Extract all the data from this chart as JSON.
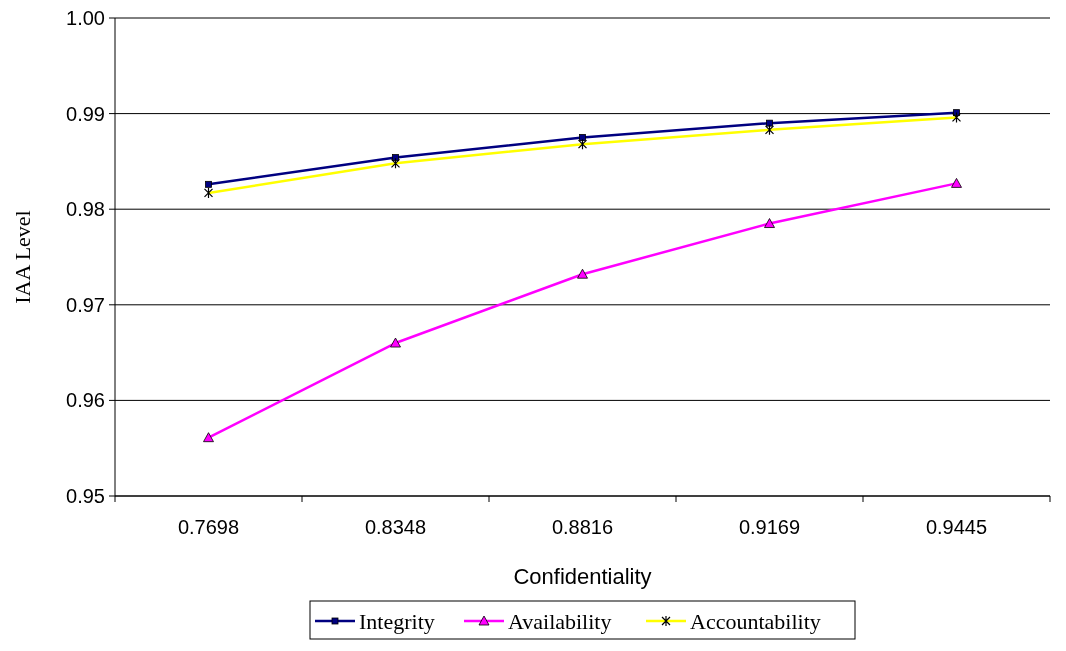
{
  "chart_data": {
    "type": "line",
    "xlabel": "Confidentiality",
    "ylabel": "IAA Level",
    "categories": [
      "0.7698",
      "0.8348",
      "0.8816",
      "0.9169",
      "0.9445"
    ],
    "series": [
      {
        "name": "Integrity",
        "color": "#000080",
        "marker": "square",
        "values": [
          0.9826,
          0.9854,
          0.9875,
          0.989,
          0.9901
        ]
      },
      {
        "name": "Availability",
        "color": "#ff00ff",
        "marker": "triangle",
        "values": [
          0.9561,
          0.966,
          0.9732,
          0.9785,
          0.9827
        ]
      },
      {
        "name": "Accountability",
        "color": "#ffff00",
        "marker": "cross",
        "values": [
          0.9817,
          0.9848,
          0.9868,
          0.9883,
          0.9896
        ]
      }
    ],
    "ylim": [
      0.95,
      1
    ],
    "yticks": [
      {
        "value": 0.95,
        "label": "0.95"
      },
      {
        "value": 0.96,
        "label": "0.96"
      },
      {
        "value": 0.97,
        "label": "0.97"
      },
      {
        "value": 0.98,
        "label": "0.98"
      },
      {
        "value": 0.99,
        "label": "0.99"
      },
      {
        "value": 1,
        "label": "1.00"
      }
    ],
    "grid": "y",
    "legend": "bottom"
  }
}
